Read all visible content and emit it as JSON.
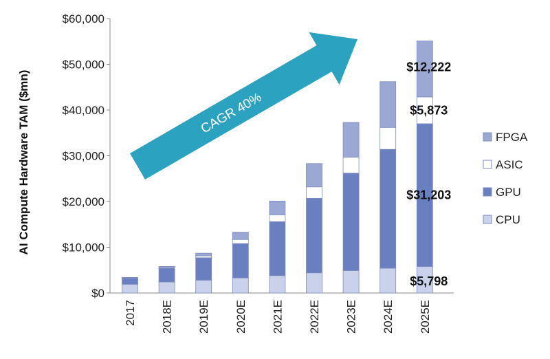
{
  "chart_data": {
    "type": "bar",
    "stacked": true,
    "categories": [
      "2017",
      "2018E",
      "2019E",
      "2020E",
      "2021E",
      "2022E",
      "2023E",
      "2024E",
      "2025E"
    ],
    "series": [
      {
        "name": "CPU",
        "color": "#c9d2ea",
        "values": [
          1900,
          2400,
          2800,
          3300,
          3800,
          4400,
          4900,
          5400,
          5798
        ]
      },
      {
        "name": "GPU",
        "color": "#6a7fbf",
        "values": [
          1300,
          3000,
          4900,
          7500,
          11800,
          16300,
          21300,
          26000,
          31203
        ]
      },
      {
        "name": "ASIC",
        "color": "#ffffff",
        "values": [
          80,
          150,
          400,
          900,
          1500,
          2500,
          3500,
          4800,
          5873
        ]
      },
      {
        "name": "FPGA",
        "color": "#9aa8d3",
        "values": [
          120,
          250,
          600,
          1600,
          3000,
          5100,
          7600,
          10000,
          12222
        ]
      }
    ],
    "ylabel": "AI Compute Hardware TAM ($mn)",
    "ylim": [
      0,
      60000
    ],
    "yticks": [
      0,
      10000,
      20000,
      30000,
      40000,
      50000,
      60000
    ],
    "ytick_labels": [
      "$0",
      "$10,000",
      "$20,000",
      "$30,000",
      "$40,000",
      "$50,000",
      "$60,000"
    ],
    "legend_order": [
      "FPGA",
      "ASIC",
      "GPU",
      "CPU"
    ],
    "legend_position": "right",
    "data_labels": [
      {
        "series": "FPGA",
        "category": "2025E",
        "text": "$12,222"
      },
      {
        "series": "ASIC",
        "category": "2025E",
        "text": "$5,873"
      },
      {
        "series": "GPU",
        "category": "2025E",
        "text": "$31,203"
      },
      {
        "series": "CPU",
        "category": "2025E",
        "text": "$5,798"
      }
    ],
    "annotation": {
      "text": "CAGR 40%",
      "color": "#2ba3c0"
    }
  }
}
